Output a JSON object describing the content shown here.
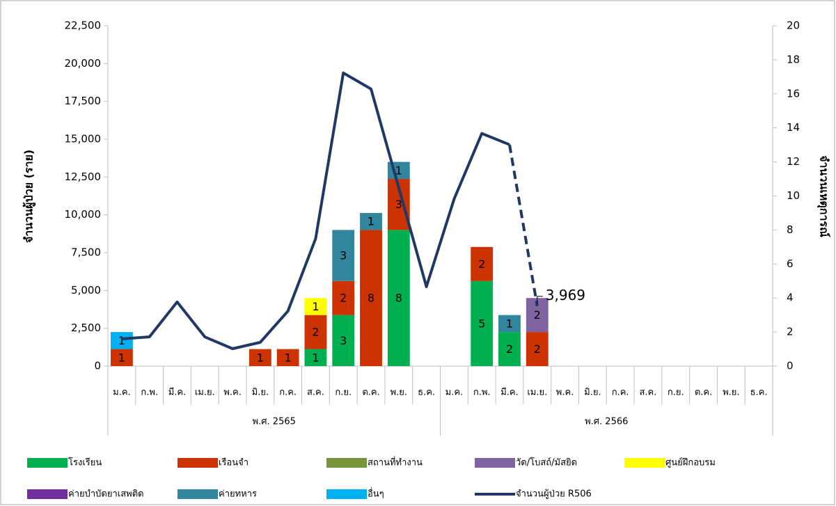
{
  "chart_data": {
    "type": "bar_line",
    "categories": [
      "ม.ค.",
      "ก.พ.",
      "มี.ค.",
      "เม.ย.",
      "พ.ค.",
      "มิ.ย.",
      "ก.ค.",
      "ส.ค.",
      "ก.ย.",
      "ต.ค.",
      "พ.ย.",
      "ธ.ค.",
      "ม.ค.",
      "ก.พ.",
      "มี.ค.",
      "เม.ย.",
      "พ.ค.",
      "มิ.ย.",
      "ก.ค.",
      "ส.ค.",
      "ก.ย.",
      "ต.ค.",
      "พ.ย.",
      "ธ.ค."
    ],
    "groups": [
      {
        "label": "พ.ศ. 2565",
        "span": 12
      },
      {
        "label": "พ.ศ. 2566",
        "span": 12
      }
    ],
    "ylabel": "จำนวนผู้ป่วย (ราย)",
    "y2label": "จำนวนเหตุการณ์",
    "ylim": [
      0,
      22500
    ],
    "yticks": [
      0,
      {
        "value": 2500,
        "label": "2,500"
      },
      {
        "value": 5000,
        "label": "5,000"
      },
      {
        "value": 7500,
        "label": "7,500"
      },
      {
        "value": 10000,
        "label": "10,000"
      },
      {
        "value": 12500,
        "label": "12,500"
      },
      {
        "value": 15000,
        "label": "15,000"
      },
      {
        "value": 17500,
        "label": "17,500"
      },
      {
        "value": 20000,
        "label": "20,000"
      },
      {
        "value": 22500,
        "label": "22,500"
      }
    ],
    "y2lim": [
      0,
      20
    ],
    "y2ticks": [
      0,
      2,
      4,
      6,
      8,
      10,
      12,
      14,
      16,
      18,
      20
    ],
    "series": [
      {
        "name": "โรงเรียน",
        "color": "#00b050",
        "type": "bar",
        "axis": "y2",
        "values": [
          null,
          null,
          null,
          null,
          null,
          null,
          null,
          1,
          3,
          null,
          8,
          null,
          null,
          5,
          2,
          null,
          null,
          null,
          null,
          null,
          null,
          null,
          null,
          null
        ]
      },
      {
        "name": "เรือนจำ",
        "color": "#cc3300",
        "type": "bar",
        "axis": "y2",
        "values": [
          1,
          null,
          null,
          null,
          null,
          1,
          1,
          2,
          2,
          8,
          3,
          null,
          null,
          2,
          null,
          2,
          null,
          null,
          null,
          null,
          null,
          null,
          null,
          null
        ]
      },
      {
        "name": "สถานที่ทำงาน",
        "color": "#77933c",
        "type": "bar",
        "axis": "y2",
        "values": [
          null,
          null,
          null,
          null,
          null,
          null,
          null,
          null,
          null,
          null,
          null,
          null,
          null,
          null,
          null,
          null,
          null,
          null,
          null,
          null,
          null,
          null,
          null,
          null
        ]
      },
      {
        "name": "วัด/โบสถ์/มัสยิด",
        "color": "#8064a2",
        "type": "bar",
        "axis": "y2",
        "values": [
          null,
          null,
          null,
          null,
          null,
          null,
          null,
          null,
          null,
          null,
          null,
          null,
          null,
          null,
          null,
          2,
          null,
          null,
          null,
          null,
          null,
          null,
          null,
          null
        ]
      },
      {
        "name": "ศูนย์ฝึกอบรม",
        "color": "#ffff00",
        "type": "bar",
        "axis": "y2",
        "values": [
          null,
          null,
          null,
          null,
          null,
          null,
          null,
          1,
          null,
          null,
          null,
          null,
          null,
          null,
          null,
          null,
          null,
          null,
          null,
          null,
          null,
          null,
          null,
          null
        ]
      },
      {
        "name": "ค่ายบำบัดยาเสพติด",
        "color": "#7030a0",
        "type": "bar",
        "axis": "y2",
        "values": [
          null,
          null,
          null,
          null,
          null,
          null,
          null,
          null,
          null,
          null,
          null,
          null,
          null,
          null,
          null,
          null,
          null,
          null,
          null,
          null,
          null,
          null,
          null,
          null
        ]
      },
      {
        "name": "ค่ายทหาร",
        "color": "#31859c",
        "type": "bar",
        "axis": "y2",
        "values": [
          null,
          null,
          null,
          null,
          null,
          null,
          null,
          null,
          3,
          1,
          1,
          null,
          null,
          null,
          1,
          null,
          null,
          null,
          null,
          null,
          null,
          null,
          null,
          null
        ]
      },
      {
        "name": "อื่นๆ",
        "color": "#00b0f0",
        "type": "bar",
        "axis": "y2",
        "values": [
          1,
          null,
          null,
          null,
          null,
          null,
          null,
          null,
          null,
          null,
          null,
          null,
          null,
          null,
          null,
          null,
          null,
          null,
          null,
          null,
          null,
          null,
          null,
          null
        ]
      },
      {
        "name": "จำนวนผู้ป่วย R506",
        "color": "#203864",
        "type": "line",
        "axis": "y",
        "dashed_from": 14,
        "values": [
          1800,
          1930,
          4240,
          1930,
          1150,
          1570,
          3640,
          8430,
          19380,
          18320,
          11800,
          5250,
          11050,
          15380,
          14640,
          3969,
          null,
          null,
          null,
          null,
          null,
          null,
          null,
          null
        ],
        "value_labels": [
          null,
          null,
          null,
          null,
          null,
          null,
          null,
          null,
          null,
          null,
          null,
          null,
          null,
          null,
          null,
          "3,969",
          null,
          null,
          null,
          null,
          null,
          null,
          null,
          null
        ]
      }
    ]
  }
}
